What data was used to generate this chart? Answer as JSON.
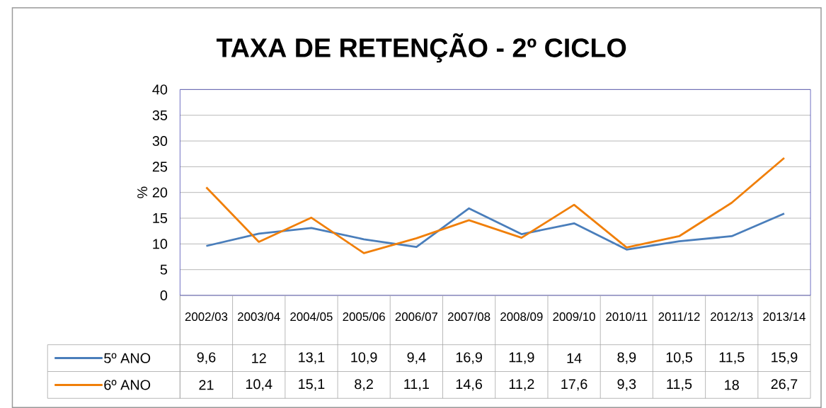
{
  "chart_data": {
    "type": "line",
    "title": "TAXA DE RETENÇÃO - 2º CICLO",
    "ylabel": "%",
    "categories": [
      "2002/03",
      "2003/04",
      "2004/05",
      "2005/06",
      "2006/07",
      "2007/08",
      "2008/09",
      "2009/10",
      "2010/11",
      "2011/12",
      "2012/13",
      "2013/14"
    ],
    "series": [
      {
        "name": "5º ANO",
        "color": "#4a7ebb",
        "values": [
          9.6,
          12,
          13.1,
          10.9,
          9.4,
          16.9,
          11.9,
          14,
          8.9,
          10.5,
          11.5,
          15.9
        ],
        "value_labels": [
          "9,6",
          "12",
          "13,1",
          "10,9",
          "9,4",
          "16,9",
          "11,9",
          "14",
          "8,9",
          "10,5",
          "11,5",
          "15,9"
        ]
      },
      {
        "name": "6º ANO",
        "color": "#f07f09",
        "values": [
          21,
          10.4,
          15.1,
          8.2,
          11.1,
          14.6,
          11.2,
          17.6,
          9.3,
          11.5,
          18,
          26.7
        ],
        "value_labels": [
          "21",
          "10,4",
          "15,1",
          "8,2",
          "11,1",
          "14,6",
          "11,2",
          "17,6",
          "9,3",
          "11,5",
          "18",
          "26,7"
        ]
      }
    ],
    "ylim": [
      0,
      40
    ],
    "yticks": [
      0,
      5,
      10,
      15,
      20,
      25,
      30,
      35,
      40
    ],
    "grid": "y",
    "legend": "bottom"
  }
}
